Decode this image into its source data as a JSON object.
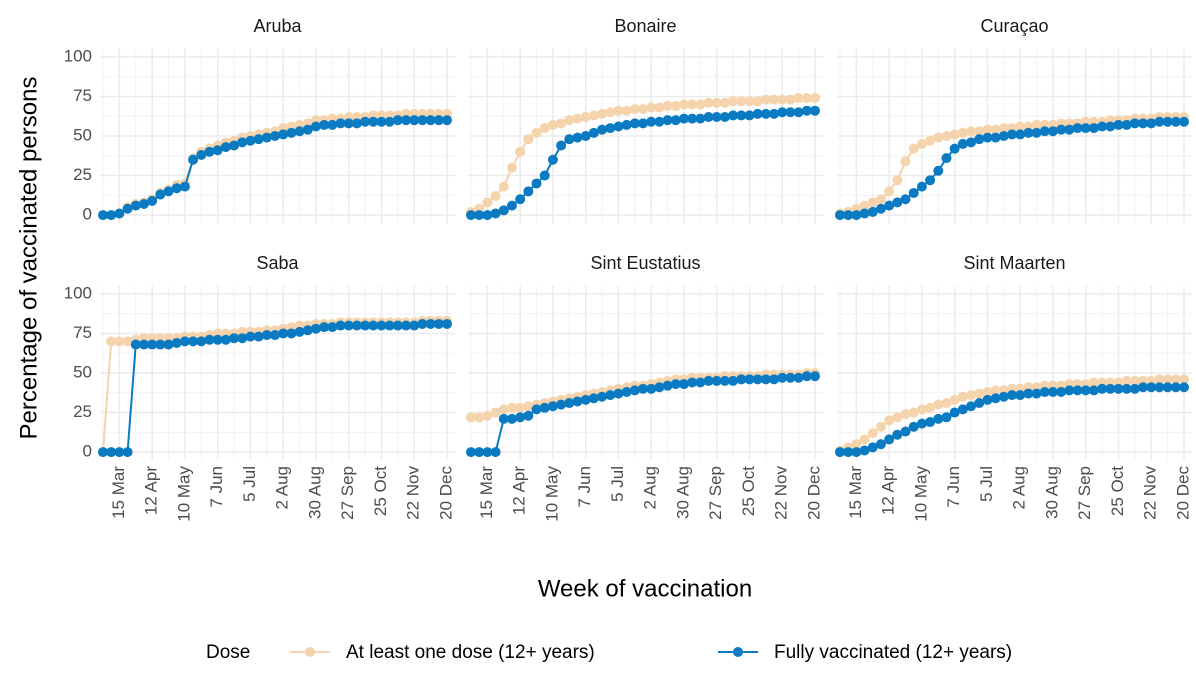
{
  "chart_data": {
    "type": "line",
    "x_label": "Week of vaccination",
    "y_label": "Percentage of vaccinated persons",
    "legend_title": "Dose",
    "categories": [
      null,
      null,
      "15 Mar",
      null,
      null,
      null,
      "12 Apr",
      null,
      null,
      null,
      "10 May",
      null,
      null,
      null,
      "7 Jun",
      null,
      null,
      null,
      "5 Jul",
      null,
      null,
      null,
      "2 Aug",
      null,
      null,
      null,
      "30 Aug",
      null,
      null,
      null,
      "27 Sep",
      null,
      null,
      null,
      "25 Oct",
      null,
      null,
      null,
      "22 Nov",
      null,
      null,
      null,
      "20 Dec"
    ],
    "ylim": [
      -5,
      105
    ],
    "yticks": [
      0,
      25,
      50,
      75,
      100
    ],
    "grid": true,
    "series": [
      {
        "name": "At least one dose (12+ years)",
        "color": "#f5d3ac"
      },
      {
        "name": "Fully vaccinated (12+ years)",
        "color": "#0a7bc2"
      }
    ],
    "facets": [
      {
        "title": "Aruba",
        "values": [
          [
            0,
            0,
            1,
            5,
            7,
            8,
            10,
            14,
            16,
            19,
            20,
            36,
            40,
            42,
            44,
            46,
            47,
            49,
            50,
            51,
            52,
            53,
            55,
            56,
            57,
            58,
            60,
            60,
            61,
            61,
            62,
            62,
            62,
            63,
            63,
            63,
            63,
            64,
            64,
            64,
            64,
            64,
            64
          ],
          [
            0,
            0,
            1,
            4,
            6,
            7,
            9,
            13,
            15,
            17,
            18,
            35,
            38,
            40,
            41,
            43,
            44,
            46,
            47,
            48,
            49,
            50,
            51,
            52,
            53,
            54,
            56,
            57,
            57,
            58,
            58,
            58,
            59,
            59,
            59,
            59,
            60,
            60,
            60,
            60,
            60,
            60,
            60
          ]
        ]
      },
      {
        "title": "Bonaire",
        "values": [
          [
            2,
            4,
            8,
            12,
            18,
            30,
            40,
            48,
            52,
            55,
            57,
            58,
            60,
            61,
            62,
            63,
            64,
            65,
            66,
            66,
            67,
            67,
            68,
            68,
            69,
            69,
            70,
            70,
            70,
            71,
            71,
            71,
            72,
            72,
            72,
            72,
            73,
            73,
            73,
            73,
            74,
            74,
            74
          ],
          [
            0,
            0,
            0,
            1,
            3,
            6,
            10,
            15,
            20,
            25,
            35,
            44,
            48,
            49,
            50,
            52,
            54,
            55,
            56,
            57,
            58,
            58,
            59,
            59,
            60,
            60,
            61,
            61,
            61,
            62,
            62,
            62,
            63,
            63,
            63,
            64,
            64,
            64,
            65,
            65,
            65,
            66,
            66
          ]
        ]
      },
      {
        "title": "Curaçao",
        "values": [
          [
            1,
            2,
            4,
            6,
            8,
            10,
            15,
            22,
            34,
            42,
            45,
            47,
            49,
            50,
            51,
            52,
            53,
            53,
            54,
            54,
            55,
            55,
            56,
            56,
            57,
            57,
            57,
            58,
            58,
            58,
            59,
            59,
            59,
            60,
            60,
            60,
            61,
            61,
            61,
            62,
            62,
            62,
            62
          ],
          [
            0,
            0,
            0,
            1,
            2,
            4,
            6,
            8,
            10,
            14,
            18,
            22,
            28,
            36,
            42,
            45,
            46,
            48,
            49,
            49,
            50,
            51,
            51,
            52,
            52,
            53,
            53,
            54,
            54,
            55,
            55,
            55,
            56,
            56,
            57,
            57,
            58,
            58,
            58,
            59,
            59,
            59,
            59
          ]
        ]
      },
      {
        "title": "Saba",
        "values": [
          [
            0,
            70,
            70,
            70,
            71,
            72,
            72,
            72,
            72,
            72,
            73,
            73,
            73,
            74,
            75,
            75,
            75,
            76,
            76,
            76,
            77,
            77,
            78,
            79,
            80,
            80,
            81,
            81,
            81,
            82,
            82,
            82,
            82,
            82,
            82,
            82,
            82,
            82,
            82,
            83,
            83,
            83,
            83
          ],
          [
            0,
            0,
            0,
            0,
            68,
            68,
            68,
            68,
            68,
            69,
            70,
            70,
            70,
            71,
            71,
            71,
            72,
            72,
            73,
            73,
            74,
            74,
            75,
            75,
            76,
            77,
            78,
            79,
            79,
            80,
            80,
            80,
            80,
            80,
            80,
            80,
            80,
            80,
            80,
            81,
            81,
            81,
            81
          ]
        ]
      },
      {
        "title": "Sint Eustatius",
        "values": [
          [
            22,
            22,
            23,
            25,
            27,
            28,
            28,
            29,
            30,
            31,
            32,
            33,
            34,
            35,
            36,
            37,
            38,
            39,
            40,
            41,
            42,
            42,
            43,
            44,
            45,
            46,
            46,
            47,
            47,
            47,
            47,
            48,
            48,
            48,
            48,
            48,
            49,
            49,
            49,
            49,
            49,
            50,
            50
          ],
          [
            0,
            0,
            0,
            0,
            21,
            21,
            22,
            23,
            27,
            28,
            29,
            30,
            31,
            32,
            33,
            34,
            35,
            36,
            37,
            38,
            39,
            40,
            40,
            41,
            42,
            43,
            43,
            44,
            44,
            45,
            45,
            45,
            45,
            46,
            46,
            46,
            46,
            46,
            47,
            47,
            47,
            48,
            48
          ]
        ]
      },
      {
        "title": "Sint Maarten",
        "values": [
          [
            1,
            3,
            5,
            8,
            12,
            16,
            20,
            22,
            24,
            25,
            27,
            28,
            30,
            31,
            33,
            35,
            36,
            37,
            38,
            39,
            39,
            40,
            40,
            41,
            41,
            42,
            42,
            42,
            43,
            43,
            43,
            44,
            44,
            44,
            44,
            45,
            45,
            45,
            45,
            46,
            46,
            46,
            46
          ],
          [
            0,
            0,
            0,
            1,
            3,
            5,
            8,
            11,
            13,
            16,
            18,
            19,
            21,
            22,
            25,
            27,
            29,
            31,
            33,
            34,
            35,
            36,
            36,
            37,
            37,
            38,
            38,
            38,
            39,
            39,
            39,
            39,
            40,
            40,
            40,
            40,
            40,
            41,
            41,
            41,
            41,
            41,
            41
          ]
        ]
      }
    ]
  }
}
